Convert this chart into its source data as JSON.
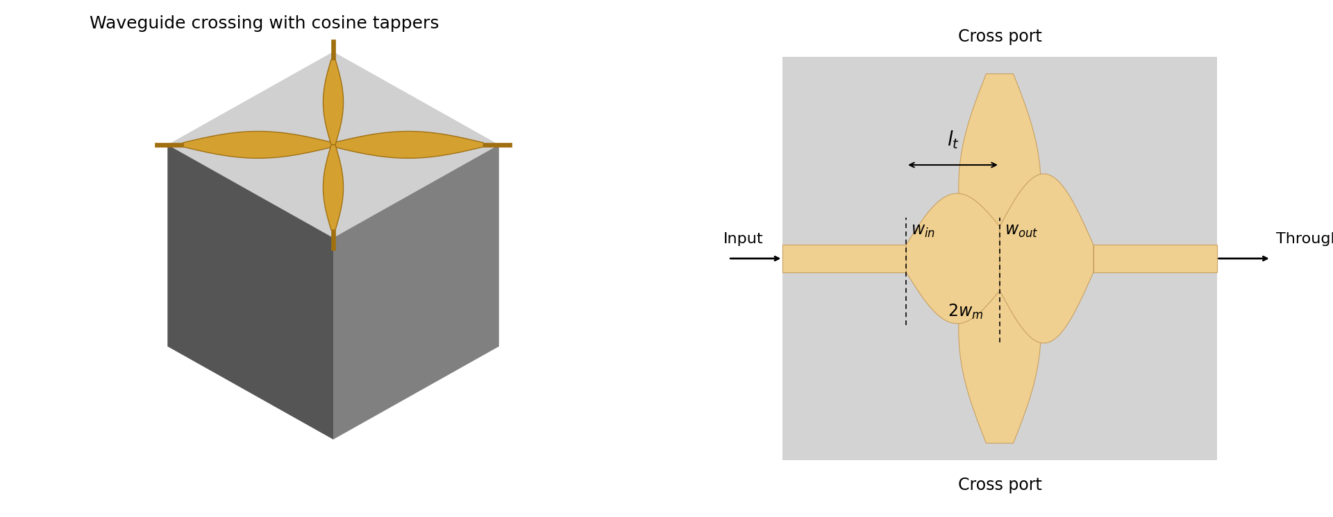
{
  "title_left": "Waveguide crossing with cosine tappers",
  "title_fontsize": 18,
  "bg_color": "#ffffff",
  "panel_bg": "#d3d3d3",
  "waveguide_color_3d_face": "#d4a030",
  "waveguide_color_3d_dark": "#a07010",
  "waveguide_color_2d": "#f0d090",
  "waveguide_edge_color": "#c8a060",
  "cube_top_color": "#d0d0d0",
  "cube_left_color": "#555555",
  "cube_right_color": "#808080",
  "label_cross_port_top": "Cross port",
  "label_cross_port_bot": "Cross port",
  "label_input": "Input",
  "label_through": "Through port",
  "label_lt": "$l_t$",
  "label_win": "$w_{in}$",
  "label_wout": "$w_{out}$",
  "label_2wm": "$2w_m$",
  "annotation_fontsize": 16
}
